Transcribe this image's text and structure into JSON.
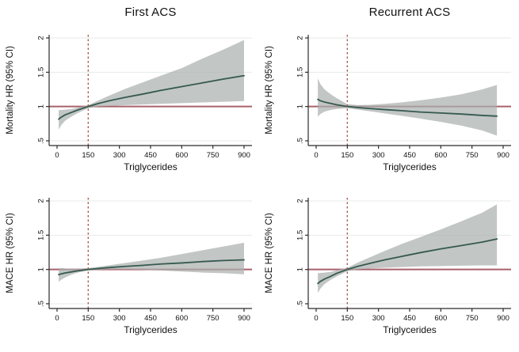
{
  "figure": {
    "column_titles": [
      "First ACS",
      "Recurrent ACS"
    ],
    "x_axis_title": "Triglycerides",
    "row_y_axis_titles": [
      "Mortality HR (95% CI)",
      "MACE HR (95% CI)"
    ]
  },
  "colors": {
    "hr_line": "#35594f",
    "ci_band": "#aab0ae",
    "ci_band_opacity": 0.72,
    "reference_line": "#a9616b",
    "threshold_line": "#a65852",
    "gridline": "#e6ebe8",
    "axis": "#2b2b2b",
    "text": "#111111",
    "background": "#ffffff"
  },
  "chart_data": [
    {
      "type": "line",
      "panel": "first-acs-mortality",
      "column_title": "First ACS",
      "ylabel": "Mortality HR (95% CI)",
      "xlabel": "Triglycerides",
      "xlim": [
        0,
        900
      ],
      "ylim": [
        0.5,
        2
      ],
      "xticks": [
        0,
        150,
        300,
        450,
        600,
        750,
        900
      ],
      "ytick_values": [
        0.5,
        1,
        1.5,
        2
      ],
      "ytick_labels": [
        ".5",
        "1",
        "1.5",
        "2"
      ],
      "reference_line_y": 1,
      "threshold_line_x": 150,
      "grid": true,
      "x": [
        8,
        20,
        40,
        70,
        100,
        150,
        200,
        260,
        330,
        410,
        500,
        600,
        700,
        800,
        900
      ],
      "hr": [
        0.815,
        0.845,
        0.88,
        0.915,
        0.95,
        1.0,
        1.045,
        1.09,
        1.135,
        1.18,
        1.235,
        1.29,
        1.345,
        1.4,
        1.45
      ],
      "ci_lower": [
        0.665,
        0.73,
        0.795,
        0.855,
        0.905,
        0.975,
        1.0,
        1.01,
        1.02,
        1.03,
        1.04,
        1.05,
        1.06,
        1.07,
        1.08
      ],
      "ci_upper": [
        0.945,
        0.95,
        0.955,
        0.965,
        0.985,
        1.02,
        1.09,
        1.17,
        1.26,
        1.35,
        1.45,
        1.56,
        1.7,
        1.83,
        1.97
      ]
    },
    {
      "type": "line",
      "panel": "recurrent-acs-mortality",
      "column_title": "Recurrent ACS",
      "ylabel": "Mortality HR (95% CI)",
      "xlabel": "Triglycerides",
      "xlim": [
        0,
        900
      ],
      "ylim": [
        0.5,
        2
      ],
      "xticks": [
        0,
        150,
        300,
        450,
        600,
        750,
        900
      ],
      "ytick_values": [
        0.5,
        1,
        1.5,
        2
      ],
      "ytick_labels": [
        ".5",
        "1",
        "1.5",
        "2"
      ],
      "reference_line_y": 1,
      "threshold_line_x": 150,
      "grid": true,
      "x": [
        8,
        20,
        40,
        70,
        100,
        150,
        200,
        260,
        330,
        410,
        500,
        600,
        700,
        800,
        870
      ],
      "hr": [
        1.105,
        1.085,
        1.065,
        1.045,
        1.025,
        1.0,
        0.985,
        0.97,
        0.955,
        0.94,
        0.92,
        0.905,
        0.89,
        0.87,
        0.86
      ],
      "ci_lower": [
        0.85,
        0.89,
        0.925,
        0.95,
        0.965,
        0.975,
        0.955,
        0.93,
        0.9,
        0.865,
        0.825,
        0.775,
        0.72,
        0.65,
        0.575
      ],
      "ci_upper": [
        1.41,
        1.33,
        1.25,
        1.18,
        1.12,
        1.035,
        1.02,
        1.025,
        1.04,
        1.06,
        1.09,
        1.13,
        1.18,
        1.25,
        1.315
      ]
    },
    {
      "type": "line",
      "panel": "first-acs-mace",
      "column_title": "First ACS",
      "ylabel": "MACE HR (95% CI)",
      "xlabel": "Triglycerides",
      "xlim": [
        0,
        900
      ],
      "ylim": [
        0.5,
        2
      ],
      "xticks": [
        0,
        150,
        300,
        450,
        600,
        750,
        900
      ],
      "ytick_values": [
        0.5,
        1,
        1.5,
        2
      ],
      "ytick_labels": [
        ".5",
        "1",
        "1.5",
        "2"
      ],
      "reference_line_y": 1,
      "threshold_line_x": 150,
      "grid": true,
      "x": [
        8,
        20,
        40,
        70,
        100,
        150,
        200,
        260,
        330,
        410,
        500,
        600,
        700,
        800,
        900
      ],
      "hr": [
        0.925,
        0.935,
        0.95,
        0.965,
        0.98,
        1.0,
        1.015,
        1.03,
        1.045,
        1.06,
        1.08,
        1.095,
        1.115,
        1.13,
        1.14
      ],
      "ci_lower": [
        0.82,
        0.85,
        0.885,
        0.925,
        0.955,
        0.985,
        0.995,
        1.0,
        1.0,
        0.995,
        0.985,
        0.97,
        0.955,
        0.945,
        0.93
      ],
      "ci_upper": [
        1.02,
        1.02,
        1.015,
        1.01,
        1.01,
        1.02,
        1.04,
        1.065,
        1.095,
        1.13,
        1.17,
        1.225,
        1.28,
        1.335,
        1.39
      ]
    },
    {
      "type": "line",
      "panel": "recurrent-acs-mace",
      "column_title": "Recurrent ACS",
      "ylabel": "MACE HR (95% CI)",
      "xlabel": "Triglycerides",
      "xlim": [
        0,
        900
      ],
      "ylim": [
        0.5,
        2
      ],
      "xticks": [
        0,
        150,
        300,
        450,
        600,
        750,
        900
      ],
      "ytick_values": [
        0.5,
        1,
        1.5,
        2
      ],
      "ytick_labels": [
        ".5",
        "1",
        "1.5",
        "2"
      ],
      "reference_line_y": 1,
      "threshold_line_x": 150,
      "grid": true,
      "x": [
        8,
        20,
        40,
        70,
        100,
        150,
        200,
        260,
        330,
        410,
        500,
        600,
        700,
        800,
        870
      ],
      "hr": [
        0.795,
        0.825,
        0.86,
        0.9,
        0.945,
        1.0,
        1.045,
        1.09,
        1.14,
        1.19,
        1.245,
        1.3,
        1.35,
        1.4,
        1.445
      ],
      "ci_lower": [
        0.655,
        0.72,
        0.785,
        0.85,
        0.9,
        0.975,
        1.0,
        1.015,
        1.025,
        1.035,
        1.045,
        1.05,
        1.055,
        1.06,
        1.06
      ],
      "ci_upper": [
        0.945,
        0.95,
        0.955,
        0.965,
        0.99,
        1.025,
        1.1,
        1.18,
        1.27,
        1.37,
        1.47,
        1.585,
        1.705,
        1.83,
        1.95
      ]
    }
  ]
}
